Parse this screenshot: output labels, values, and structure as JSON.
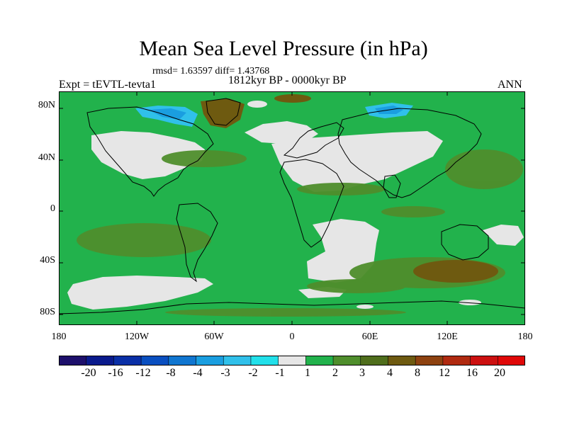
{
  "title": "Mean Sea Level Pressure (in hPa)",
  "stats_text": "rmsd= 1.63597  diff= 1.43768",
  "period_text": "1812kyr BP - 0000kyr BP",
  "experiment_text": "Expt = tEVTL-tevta1",
  "season_text": "ANN",
  "latitude_labels": [
    "80N",
    "40N",
    "0",
    "40S",
    "80S"
  ],
  "longitude_labels": [
    "180",
    "120W",
    "60W",
    "0",
    "60E",
    "120E",
    "180"
  ],
  "colorbar": {
    "labels": [
      "-20",
      "-16",
      "-12",
      "-8",
      "-4",
      "-3",
      "-2",
      "-1",
      "1",
      "2",
      "3",
      "4",
      "8",
      "12",
      "16",
      "20"
    ],
    "colors": [
      "#1d0f6b",
      "#0a1a8c",
      "#0a2fa6",
      "#0a4fc0",
      "#1076d0",
      "#1a9ee0",
      "#30c0ea",
      "#22e0ea",
      "#e6e6e6",
      "#22b24c",
      "#4f8e2c",
      "#4f6e1c",
      "#6e5a10",
      "#8e4210",
      "#b02a10",
      "#cc1010",
      "#e00808"
    ]
  },
  "map_colors": {
    "ocean_base": "#22b24c",
    "near_zero": "#e6e6e6",
    "positive_3_4": "#4f8e2c",
    "positive_4_8": "#6e5a10",
    "negative_2_3": "#1a9ee0",
    "negative_1_2": "#30c0ea"
  }
}
